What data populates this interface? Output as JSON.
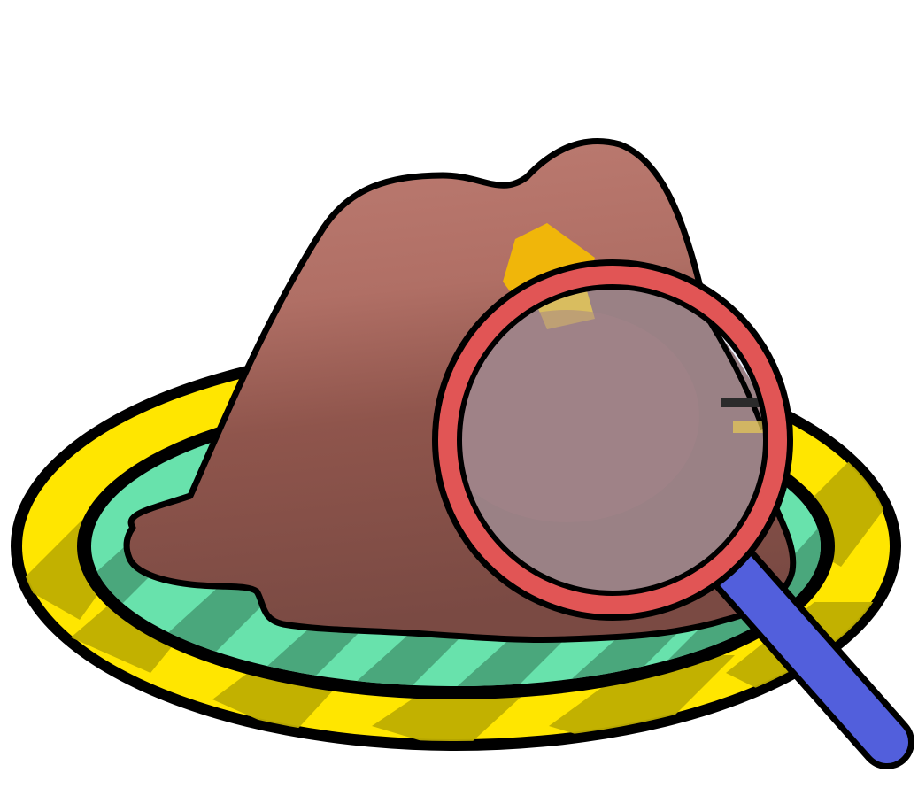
{
  "illustration": {
    "subject": "magnifying-glass-over-cloth-on-plate",
    "colors": {
      "background": "#ffffff",
      "outline": "#000000",
      "plate_rim": "#ffe600",
      "plate_rim_shade": "#bfae00",
      "plate_inner": "#68e2ac",
      "plate_inner_stripe": "#4aa77c",
      "cloth_light": "#bd7c72",
      "cloth_mid": "#a25f55",
      "cloth_dark": "#7a4a43",
      "badge": "#f0b60a",
      "badge_lens": "#e8cc55",
      "lens_frame": "#e15555",
      "lens_glass": "#9a8185",
      "lens_reflection": "#e9f1fb",
      "handle": "#525fdc"
    }
  }
}
